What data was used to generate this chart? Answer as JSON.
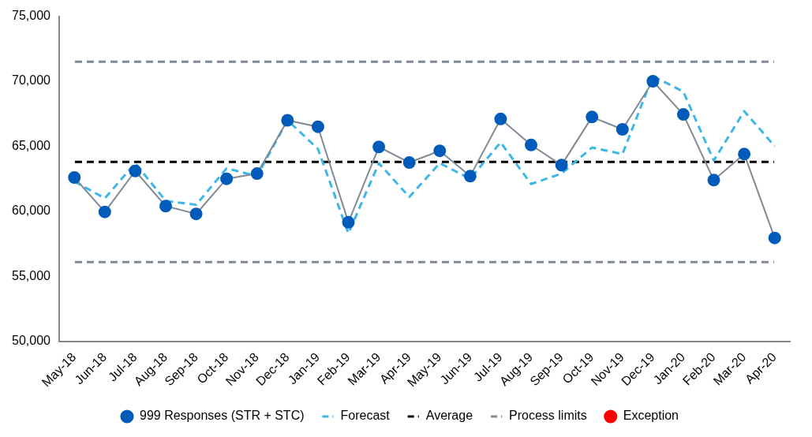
{
  "chart_data": {
    "type": "line",
    "categories": [
      "May-18",
      "Jun-18",
      "Jul-18",
      "Aug-18",
      "Sep-18",
      "Oct-18",
      "Nov-18",
      "Dec-18",
      "Jan-19",
      "Feb-19",
      "Mar-19",
      "Apr-19",
      "May-19",
      "Jun-19",
      "Jul-19",
      "Aug-19",
      "Sep-19",
      "Oct-19",
      "Nov-19",
      "Dec-19",
      "Jan-20",
      "Feb-20",
      "Mar-20",
      "Apr-20"
    ],
    "series": [
      {
        "name": "999 Responses (STR + STC)",
        "color": "#005bbb",
        "marker": "circle",
        "line_style": "solid",
        "values": [
          62600,
          59950,
          63100,
          60400,
          59800,
          62500,
          62900,
          67000,
          66500,
          59150,
          64950,
          63750,
          64650,
          62700,
          67100,
          65100,
          63550,
          67250,
          66300,
          70000,
          67450,
          62400,
          64400,
          57950
        ]
      },
      {
        "name": "Forecast",
        "color": "#3fb6e8",
        "marker": "none",
        "line_style": "dashed",
        "values": [
          62300,
          61000,
          63700,
          60800,
          60500,
          63300,
          62700,
          67000,
          64800,
          58300,
          63700,
          61100,
          63700,
          62500,
          65300,
          62100,
          62900,
          64900,
          64400,
          70400,
          69200,
          63900,
          67700,
          65000
        ]
      },
      {
        "name": "Exception",
        "type": "scatter",
        "color": "#ff0000",
        "marker": "circle",
        "values": [
          null,
          null,
          null,
          null,
          null,
          null,
          null,
          null,
          null,
          null,
          null,
          null,
          null,
          null,
          null,
          null,
          null,
          null,
          null,
          null,
          null,
          null,
          null,
          null
        ]
      }
    ],
    "ref_lines": [
      {
        "axis": "y",
        "value": 63800,
        "label": "Average",
        "color": "#000000",
        "line_style": "dashed"
      },
      {
        "axis": "y",
        "value": 71500,
        "label": "Process limits",
        "color": "#7f8a95",
        "line_style": "dashed"
      },
      {
        "axis": "y",
        "value": 56100,
        "color": "#7f8a95",
        "line_style": "dashed"
      }
    ],
    "ylim": [
      50000,
      75000
    ],
    "yticks": [
      {
        "value": 50000,
        "label": "50,000"
      },
      {
        "value": 55000,
        "label": "55,000"
      },
      {
        "value": 60000,
        "label": "60,000"
      },
      {
        "value": 65000,
        "label": "65,000"
      },
      {
        "value": 70000,
        "label": "70,000"
      },
      {
        "value": 75000,
        "label": "75,000"
      }
    ],
    "grid": false,
    "legend": "bottom"
  }
}
